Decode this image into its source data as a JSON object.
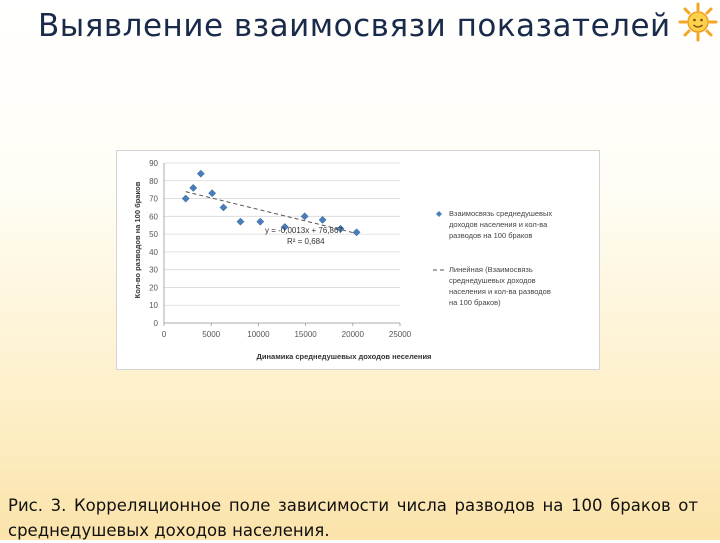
{
  "slide": {
    "title": "Выявление взаимосвязи показателей",
    "caption": "Рис. 3. Корреляционное поле зависимости числа разводов на 100 браков от среднедушевых доходов населения."
  },
  "chart_data": {
    "type": "scatter",
    "xlabel": "Динамика среднедушевых доходов неселения",
    "ylabel": "Кол-во разводов на 100 браков",
    "xlim": [
      0,
      25000
    ],
    "ylim": [
      0,
      90
    ],
    "x_ticks": [
      "0",
      "5000",
      "10000",
      "15000",
      "20000",
      "25000"
    ],
    "y_ticks": [
      "0",
      "10",
      "20",
      "30",
      "40",
      "50",
      "60",
      "70",
      "80",
      "90"
    ],
    "grid": true,
    "series": [
      {
        "name": "Взаимосвязь среднедушевых доходов населения и кол-ва разводов на 100 браков",
        "color": "#4a7ebb",
        "marker": "diamond",
        "points": [
          {
            "x": 2300,
            "y": 70
          },
          {
            "x": 3100,
            "y": 76
          },
          {
            "x": 3900,
            "y": 84
          },
          {
            "x": 5100,
            "y": 73
          },
          {
            "x": 6300,
            "y": 65
          },
          {
            "x": 8100,
            "y": 57
          },
          {
            "x": 10200,
            "y": 57
          },
          {
            "x": 12800,
            "y": 54
          },
          {
            "x": 14900,
            "y": 60
          },
          {
            "x": 16800,
            "y": 58
          },
          {
            "x": 18700,
            "y": 53
          },
          {
            "x": 20400,
            "y": 51
          }
        ]
      }
    ],
    "trendline": {
      "name": "Линейная (Взаимосвязь среднедушевых доходов населения и кол-ва разводов на 100 браков)",
      "color": "#555555",
      "slope": -0.0013,
      "intercept": 76.867,
      "x_range": [
        2300,
        20400
      ],
      "equation": "y = -0,0013x + 76,867",
      "r_squared": "R² = 0,684"
    },
    "legend_position": "right"
  }
}
